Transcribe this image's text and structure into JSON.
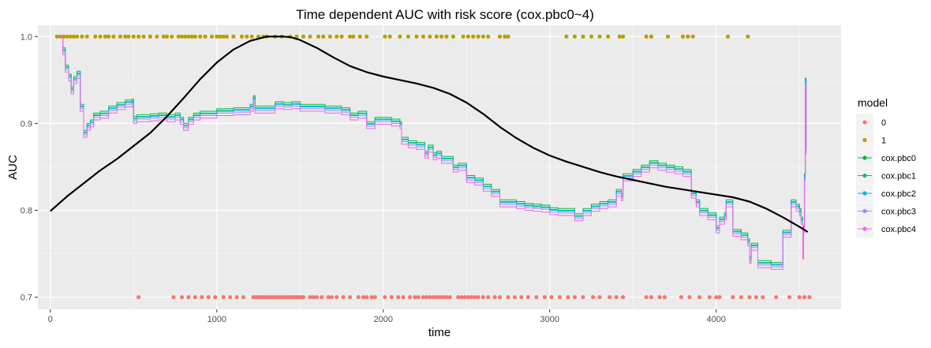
{
  "chart_data": {
    "type": "line",
    "title": "Time dependent AUC with risk score (cox.pbc0~4)",
    "xlabel": "time",
    "ylabel": "AUC",
    "xlim": [
      -75,
      4750
    ],
    "ylim": [
      0.686,
      1.013
    ],
    "x_ticks": [
      0,
      1000,
      2000,
      3000,
      4000
    ],
    "y_ticks": [
      0.7,
      0.8,
      0.9,
      1.0
    ],
    "x_tick_labels": [
      "0",
      "1000",
      "2000",
      "3000",
      "4000"
    ],
    "y_tick_labels": [
      "0.7",
      "0.8",
      "0.9",
      "1.0"
    ],
    "grid": true,
    "panel_background": "#EBEBEB",
    "legend": {
      "title": "model",
      "placement": "right",
      "entries": [
        {
          "label": "0",
          "color": "#F8766D"
        },
        {
          "label": "1",
          "color": "#B79F00"
        },
        {
          "label": "cox.pbc0",
          "color": "#00BA38"
        },
        {
          "label": "cox.pbc1",
          "color": "#00BF7D"
        },
        {
          "label": "cox.pbc2",
          "color": "#00B0F6"
        },
        {
          "label": "cox.pbc3",
          "color": "#9590FF"
        },
        {
          "label": "cox.pbc4",
          "color": "#F564E3"
        }
      ]
    },
    "points_0": {
      "y": 0.7,
      "x": [
        530,
        740,
        790,
        830,
        870,
        910,
        950,
        990,
        1040,
        1080,
        1120,
        1160,
        1220,
        1235,
        1250,
        1265,
        1280,
        1295,
        1310,
        1325,
        1340,
        1355,
        1370,
        1385,
        1400,
        1415,
        1430,
        1445,
        1460,
        1475,
        1490,
        1505,
        1520,
        1560,
        1580,
        1600,
        1630,
        1670,
        1690,
        1720,
        1760,
        1800,
        1850,
        1880,
        1900,
        1930,
        1950,
        2010,
        2050,
        2090,
        2120,
        2160,
        2190,
        2210,
        2240,
        2260,
        2280,
        2300,
        2320,
        2340,
        2360,
        2380,
        2400,
        2450,
        2470,
        2490,
        2510,
        2530,
        2550,
        2570,
        2600,
        2630,
        2670,
        2700,
        2750,
        2790,
        2830,
        2870,
        2920,
        2970,
        3010,
        3060,
        3110,
        3150,
        3200,
        3260,
        3300,
        3360,
        3400,
        3440,
        3580,
        3610,
        3660,
        3690,
        3790,
        3840,
        3900,
        3960,
        4000,
        4020,
        4100,
        4150,
        4200,
        4240,
        4280,
        4360,
        4440,
        4500,
        4530,
        4560
      ]
    },
    "points_1": {
      "y": 1.0,
      "x": [
        40,
        60,
        80,
        100,
        120,
        140,
        160,
        190,
        220,
        270,
        300,
        330,
        350,
        380,
        420,
        450,
        470,
        500,
        530,
        560,
        600,
        640,
        680,
        700,
        730,
        770,
        790,
        810,
        830,
        850,
        870,
        900,
        930,
        970,
        1000,
        1020,
        1040,
        1060,
        1100,
        1150,
        1180,
        1210,
        1250,
        1280,
        1300,
        1350,
        1390,
        1440,
        1480,
        1520,
        1560,
        1610,
        1640,
        1680,
        1720,
        1750,
        1800,
        1820,
        1860,
        1900,
        2010,
        2040,
        2100,
        2150,
        2200,
        2240,
        2280,
        2320,
        2350,
        2380,
        2420,
        2480,
        2510,
        2540,
        2570,
        2600,
        2630,
        2700,
        2730,
        2750,
        3100,
        3150,
        3200,
        3250,
        3300,
        3350,
        3420,
        3440,
        3580,
        3610,
        3710,
        3800,
        3830,
        3860,
        4070,
        4190
      ]
    },
    "smooth_curve": {
      "color": "#000000",
      "x": [
        0,
        100,
        200,
        300,
        400,
        500,
        600,
        700,
        800,
        900,
        1000,
        1100,
        1200,
        1300,
        1400,
        1450,
        1500,
        1600,
        1700,
        1800,
        1900,
        2000,
        2100,
        2200,
        2300,
        2400,
        2500,
        2600,
        2700,
        2800,
        2900,
        3000,
        3100,
        3200,
        3300,
        3400,
        3500,
        3600,
        3700,
        3800,
        3900,
        4000,
        4100,
        4200,
        4300,
        4400,
        4500,
        4550
      ],
      "y": [
        0.799,
        0.816,
        0.831,
        0.846,
        0.859,
        0.874,
        0.889,
        0.908,
        0.929,
        0.951,
        0.97,
        0.985,
        0.995,
        1.0,
        1.0,
        0.999,
        0.996,
        0.987,
        0.976,
        0.966,
        0.959,
        0.954,
        0.95,
        0.946,
        0.941,
        0.934,
        0.924,
        0.911,
        0.896,
        0.883,
        0.872,
        0.863,
        0.856,
        0.85,
        0.844,
        0.839,
        0.835,
        0.831,
        0.827,
        0.824,
        0.821,
        0.818,
        0.815,
        0.81,
        0.802,
        0.792,
        0.781,
        0.775
      ]
    },
    "series": [
      {
        "name": "cox.pbc0",
        "color": "#00BA38",
        "offset": 0.002
      },
      {
        "name": "cox.pbc1",
        "color": "#00BF7D",
        "offset": 0.0
      },
      {
        "name": "cox.pbc2",
        "color": "#00B0F6",
        "offset": -0.001
      },
      {
        "name": "cox.pbc3",
        "color": "#9590FF",
        "offset": -0.003
      },
      {
        "name": "cox.pbc4",
        "color": "#F564E3",
        "offset": -0.006
      }
    ],
    "auc_base": {
      "x": [
        70,
        75,
        90,
        110,
        125,
        140,
        160,
        180,
        200,
        220,
        240,
        260,
        300,
        350,
        400,
        450,
        490,
        500,
        520,
        560,
        600,
        650,
        700,
        750,
        780,
        800,
        830,
        860,
        900,
        950,
        1000,
        1050,
        1100,
        1150,
        1200,
        1220,
        1230,
        1250,
        1300,
        1350,
        1400,
        1450,
        1500,
        1550,
        1600,
        1650,
        1700,
        1750,
        1800,
        1850,
        1900,
        1950,
        2000,
        2050,
        2100,
        2110,
        2150,
        2200,
        2250,
        2270,
        2300,
        2320,
        2350,
        2400,
        2420,
        2450,
        2500,
        2550,
        2600,
        2650,
        2700,
        2750,
        2800,
        2850,
        2900,
        2950,
        3000,
        3050,
        3100,
        3150,
        3200,
        3250,
        3300,
        3350,
        3400,
        3430,
        3440,
        3500,
        3550,
        3600,
        3650,
        3700,
        3750,
        3800,
        3850,
        3880,
        3900,
        3950,
        4000,
        4020,
        4050,
        4060,
        4100,
        4150,
        4190,
        4200,
        4210,
        4250,
        4300,
        4330,
        4350,
        4400,
        4450,
        4480,
        4500,
        4510,
        4520,
        4525,
        4530,
        4535,
        4540
      ],
      "y": [
        1.0,
        0.985,
        0.965,
        0.955,
        0.94,
        0.952,
        0.958,
        0.92,
        0.89,
        0.898,
        0.902,
        0.91,
        0.912,
        0.918,
        0.922,
        0.925,
        0.926,
        0.906,
        0.908,
        0.908,
        0.909,
        0.91,
        0.908,
        0.91,
        0.905,
        0.898,
        0.905,
        0.91,
        0.912,
        0.912,
        0.915,
        0.915,
        0.916,
        0.916,
        0.92,
        0.93,
        0.918,
        0.918,
        0.918,
        0.923,
        0.922,
        0.923,
        0.92,
        0.92,
        0.92,
        0.918,
        0.918,
        0.916,
        0.91,
        0.912,
        0.9,
        0.905,
        0.905,
        0.903,
        0.9,
        0.882,
        0.878,
        0.876,
        0.866,
        0.873,
        0.864,
        0.866,
        0.86,
        0.86,
        0.85,
        0.852,
        0.838,
        0.835,
        0.828,
        0.822,
        0.81,
        0.81,
        0.808,
        0.806,
        0.805,
        0.804,
        0.801,
        0.8,
        0.8,
        0.794,
        0.8,
        0.805,
        0.808,
        0.81,
        0.822,
        0.817,
        0.84,
        0.845,
        0.85,
        0.855,
        0.852,
        0.85,
        0.848,
        0.845,
        0.82,
        0.81,
        0.8,
        0.795,
        0.78,
        0.79,
        0.795,
        0.81,
        0.776,
        0.772,
        0.765,
        0.745,
        0.76,
        0.74,
        0.74,
        0.738,
        0.738,
        0.775,
        0.81,
        0.805,
        0.8,
        0.79,
        0.75,
        0.78,
        0.84,
        0.95,
        0.87
      ]
    }
  }
}
